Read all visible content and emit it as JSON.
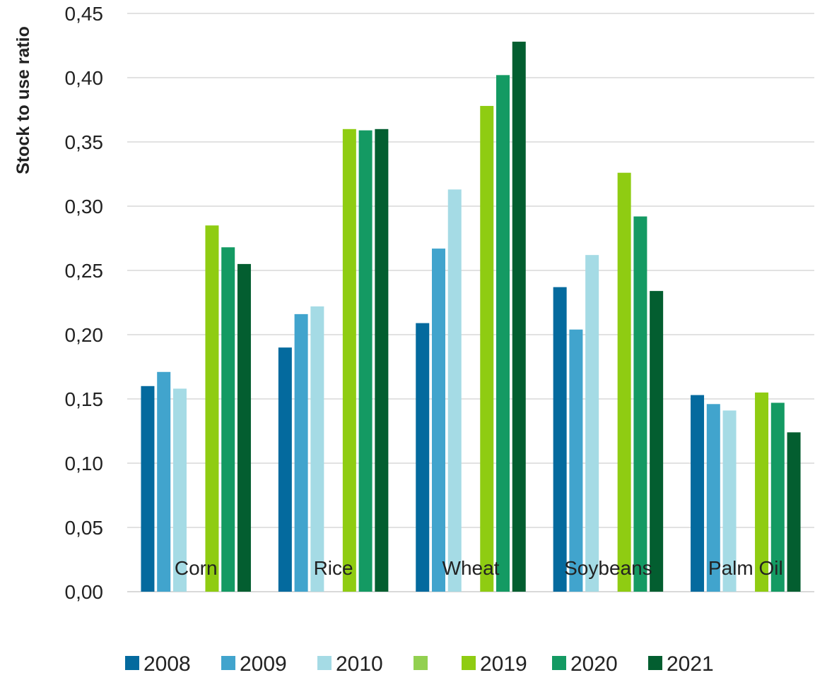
{
  "chart_data": {
    "type": "bar",
    "ylabel": "Stock to use ratio",
    "xlabel": "",
    "ylim": [
      0,
      0.45
    ],
    "y_ticks": [
      "0,00",
      "0,05",
      "0,10",
      "0,15",
      "0,20",
      "0,25",
      "0,30",
      "0,35",
      "0,40",
      "0,45"
    ],
    "categories": [
      "Corn",
      "Rice",
      "Wheat",
      "Soybeans",
      "Palm Oil"
    ],
    "grid": true,
    "legend_position": "bottom",
    "series": [
      {
        "name": "2008",
        "color": "#046a9e",
        "values": [
          0.16,
          0.19,
          0.209,
          0.237,
          0.153
        ]
      },
      {
        "name": "2009",
        "color": "#41a4cd",
        "values": [
          0.171,
          0.216,
          0.267,
          0.204,
          0.146
        ]
      },
      {
        "name": "2010",
        "color": "#a5dbe5",
        "values": [
          0.158,
          0.222,
          0.313,
          0.262,
          0.141
        ]
      },
      {
        "name": "",
        "color": "#92d050",
        "values": [
          null,
          null,
          null,
          null,
          null
        ]
      },
      {
        "name": "2019",
        "color": "#8fcc12",
        "values": [
          0.285,
          0.36,
          0.378,
          0.326,
          0.155
        ]
      },
      {
        "name": "2020",
        "color": "#149a63",
        "values": [
          0.268,
          0.359,
          0.402,
          0.292,
          0.147
        ]
      },
      {
        "name": "2021",
        "color": "#035e30",
        "values": [
          0.255,
          0.36,
          0.428,
          0.234,
          0.124
        ]
      }
    ]
  }
}
